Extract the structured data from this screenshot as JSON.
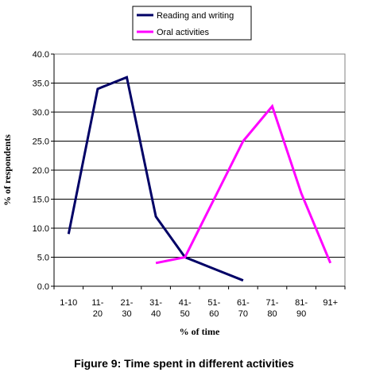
{
  "caption": "Figure 9: Time spent in different activities",
  "chart_data": {
    "type": "line",
    "title": "Figure 9: Time spent in different activities",
    "xlabel": "% of time",
    "ylabel": "% of respondents",
    "categories": [
      "1-10",
      "11-20",
      "21-30",
      "31-40",
      "41-50",
      "51-60",
      "61-70",
      "71-80",
      "81-90",
      "91+"
    ],
    "category_lines": [
      [
        "1-10"
      ],
      [
        "11-",
        "20"
      ],
      [
        "21-",
        "30"
      ],
      [
        "31-",
        "40"
      ],
      [
        "41-",
        "50"
      ],
      [
        "51-",
        "60"
      ],
      [
        "61-",
        "70"
      ],
      [
        "71-",
        "80"
      ],
      [
        "81-",
        "90"
      ],
      [
        "91+"
      ]
    ],
    "ylim": [
      0,
      40
    ],
    "yticks": [
      "0.0",
      "5.0",
      "10.0",
      "15.0",
      "20.0",
      "25.0",
      "30.0",
      "35.0",
      "40.0"
    ],
    "grid": true,
    "legend_position": "top",
    "series": [
      {
        "name": "Reading and writing",
        "color": "#000066",
        "values": [
          9,
          34,
          36,
          12,
          5,
          3,
          1,
          null,
          null,
          null
        ]
      },
      {
        "name": "Oral activities",
        "color": "#FF00FF",
        "values": [
          null,
          null,
          null,
          4,
          5,
          15,
          25,
          31,
          16,
          4
        ]
      }
    ]
  }
}
